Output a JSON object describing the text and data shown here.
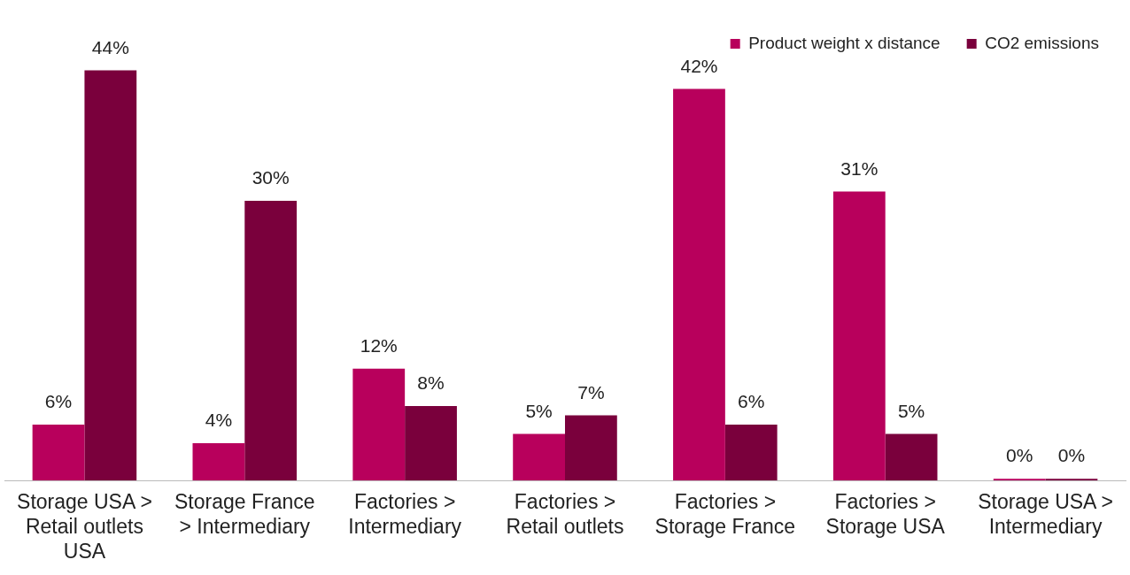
{
  "chart_data": {
    "type": "bar",
    "categories": [
      "Storage USA > Retail outlets USA",
      "Storage France > Intermediary",
      "Factories > Intermediary",
      "Factories > Retail outlets",
      "Factories > Storage France",
      "Factories > Storage USA",
      "Storage USA > Intermediary"
    ],
    "series": [
      {
        "name": "Product weight x distance",
        "color": "#b8005c",
        "values": [
          6,
          4,
          12,
          5,
          42,
          31,
          0
        ],
        "value_labels": [
          "6%",
          "4%",
          "12%",
          "5%",
          "42%",
          "31%",
          "0%"
        ]
      },
      {
        "name": "CO2 emissions",
        "color": "#7a003c",
        "values": [
          44,
          30,
          8,
          7,
          6,
          5,
          0
        ],
        "value_labels": [
          "44%",
          "30%",
          "8%",
          "7%",
          "6%",
          "5%",
          "0%"
        ]
      }
    ],
    "legend": "top right",
    "grid": false,
    "tick_labels": "x"
  }
}
